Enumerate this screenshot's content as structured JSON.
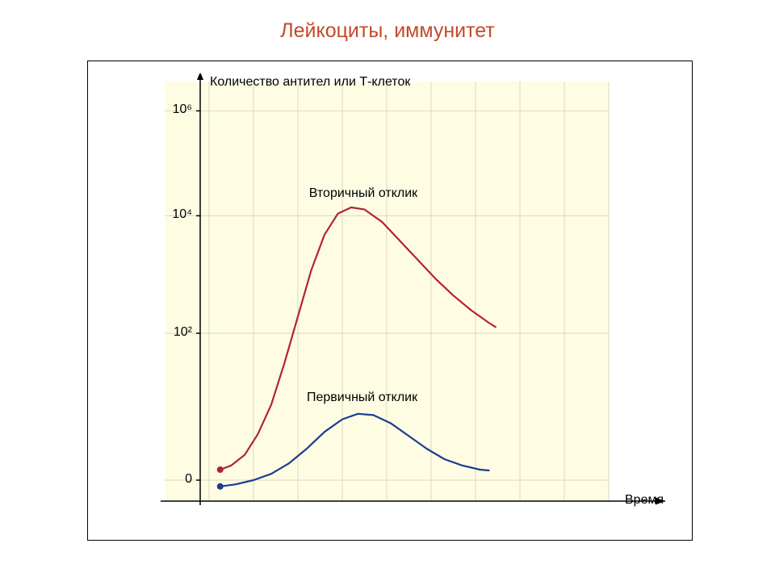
{
  "title": "Лейкоциты, иммунитет",
  "chart": {
    "type": "line",
    "background_color": "#fefde4",
    "plot_background_color": "#fefde4",
    "grid_color": "#d9d7c2",
    "axis_color": "#000000",
    "frame_border": "#000000",
    "x_axis_label": "Время",
    "y_axis_label": "Количество антител или Т-клеток",
    "axis_label_fontsize": 16,
    "axis_label_color": "#000000",
    "y_scale": "log",
    "y_ticks": [
      {
        "value": 0,
        "label": "0",
        "pos": 0.05
      },
      {
        "value": 100,
        "label": "10²",
        "pos": 0.4
      },
      {
        "value": 10000,
        "label": "10⁴",
        "pos": 0.68
      },
      {
        "value": 1000000,
        "label": "10⁶",
        "pos": 0.93
      }
    ],
    "x_grid_positions": [
      0.1,
      0.2,
      0.3,
      0.4,
      0.5,
      0.6,
      0.7,
      0.8,
      0.9,
      1.0
    ],
    "series": [
      {
        "name": "primary",
        "label": "Первичный отклик",
        "color": "#1a3d8f",
        "line_width": 2.2,
        "start_marker": {
          "x": 0.125,
          "y": 0.035,
          "r": 4
        },
        "label_pos": {
          "x": 0.32,
          "y": 0.245
        },
        "points": [
          {
            "x": 0.125,
            "y": 0.035
          },
          {
            "x": 0.16,
            "y": 0.04
          },
          {
            "x": 0.2,
            "y": 0.05
          },
          {
            "x": 0.24,
            "y": 0.065
          },
          {
            "x": 0.28,
            "y": 0.09
          },
          {
            "x": 0.32,
            "y": 0.125
          },
          {
            "x": 0.36,
            "y": 0.165
          },
          {
            "x": 0.4,
            "y": 0.195
          },
          {
            "x": 0.435,
            "y": 0.208
          },
          {
            "x": 0.47,
            "y": 0.205
          },
          {
            "x": 0.51,
            "y": 0.185
          },
          {
            "x": 0.55,
            "y": 0.155
          },
          {
            "x": 0.59,
            "y": 0.125
          },
          {
            "x": 0.63,
            "y": 0.1
          },
          {
            "x": 0.67,
            "y": 0.085
          },
          {
            "x": 0.71,
            "y": 0.075
          },
          {
            "x": 0.73,
            "y": 0.073
          }
        ]
      },
      {
        "name": "secondary",
        "label": "Вторичный отклик",
        "color": "#b4213a",
        "line_width": 2.2,
        "start_marker": {
          "x": 0.125,
          "y": 0.075,
          "r": 4
        },
        "label_pos": {
          "x": 0.325,
          "y": 0.73
        },
        "points": [
          {
            "x": 0.125,
            "y": 0.075
          },
          {
            "x": 0.15,
            "y": 0.085
          },
          {
            "x": 0.18,
            "y": 0.11
          },
          {
            "x": 0.21,
            "y": 0.16
          },
          {
            "x": 0.24,
            "y": 0.23
          },
          {
            "x": 0.27,
            "y": 0.33
          },
          {
            "x": 0.3,
            "y": 0.44
          },
          {
            "x": 0.33,
            "y": 0.55
          },
          {
            "x": 0.36,
            "y": 0.635
          },
          {
            "x": 0.39,
            "y": 0.685
          },
          {
            "x": 0.42,
            "y": 0.7
          },
          {
            "x": 0.45,
            "y": 0.695
          },
          {
            "x": 0.49,
            "y": 0.665
          },
          {
            "x": 0.53,
            "y": 0.62
          },
          {
            "x": 0.57,
            "y": 0.575
          },
          {
            "x": 0.61,
            "y": 0.53
          },
          {
            "x": 0.65,
            "y": 0.49
          },
          {
            "x": 0.69,
            "y": 0.455
          },
          {
            "x": 0.73,
            "y": 0.425
          },
          {
            "x": 0.745,
            "y": 0.415
          }
        ]
      }
    ]
  }
}
